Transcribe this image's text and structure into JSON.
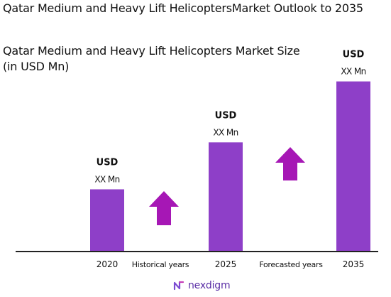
{
  "title": "Qatar Medium and Heavy Lift HelicoptersMarket Outlook to 2035",
  "subtitle": "Qatar Medium and Heavy Lift Helicopters Market Size (in USD Mn)",
  "brand": "nexdigm",
  "colors": {
    "bar": "#8e3fc8",
    "arrow": "#a617b5",
    "axis": "#222222",
    "brand": "#5a2ea6"
  },
  "chart_data": {
    "type": "bar",
    "categories": [
      "2020",
      "2025",
      "2035"
    ],
    "values": [
      98,
      172,
      268
    ],
    "value_labels": [
      {
        "currency": "USD",
        "value": "XX Mn"
      },
      {
        "currency": "USD",
        "value": "XX Mn"
      },
      {
        "currency": "USD",
        "value": "XX Mn"
      }
    ],
    "period_labels": [
      "Historical years",
      "Forecasted years"
    ],
    "ylim": [
      0,
      300
    ],
    "grid": false,
    "legend": "none"
  }
}
